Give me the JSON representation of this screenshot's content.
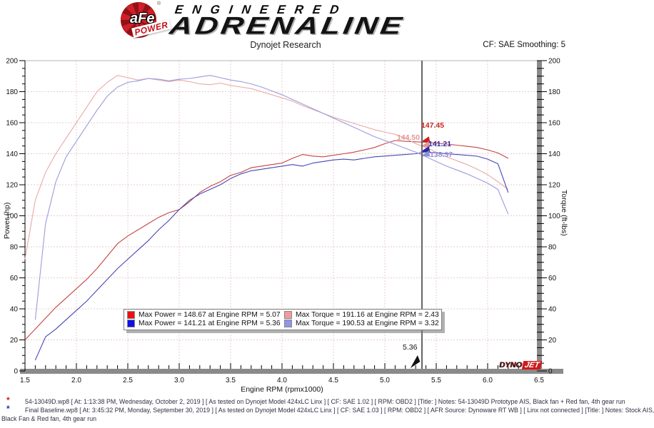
{
  "header": {
    "brand_afe": "aFe",
    "brand_reg": "®",
    "brand_power": "POWER",
    "brand_line1": "ENGINEERED",
    "brand_line2": "ADRENALINE",
    "subtitle": "Dynojet Research",
    "smoothing_label": "CF: SAE Smoothing: 5"
  },
  "watermark": {
    "dyno": "DYNO",
    "jet": "JET"
  },
  "chart_data": {
    "type": "line",
    "title": "",
    "xlabel": "Engine RPM (rpmx1000)",
    "ylabel_left": "Power (hp)",
    "ylabel_right": "Torque (ft-lbs)",
    "xlim": [
      1.5,
      6.5
    ],
    "ylim": [
      0,
      200
    ],
    "x_major_step": 0.5,
    "x_minor_step": 0.1,
    "y_major_step": 20,
    "y_minor_step": 5,
    "grid": true,
    "grid_color": "#e9cdcd",
    "x": [
      1.5,
      1.6,
      1.7,
      1.8,
      1.9,
      2.0,
      2.1,
      2.2,
      2.3,
      2.4,
      2.5,
      2.6,
      2.7,
      2.8,
      2.9,
      3.0,
      3.1,
      3.2,
      3.3,
      3.4,
      3.5,
      3.6,
      3.7,
      3.8,
      3.9,
      4.0,
      4.1,
      4.2,
      4.3,
      4.4,
      4.5,
      4.6,
      4.7,
      4.8,
      4.9,
      5.0,
      5.1,
      5.2,
      5.3,
      5.4,
      5.5,
      5.6,
      5.7,
      5.8,
      5.9,
      6.0,
      6.1,
      6.2
    ],
    "series": [
      {
        "name": "power-run1-prototype",
        "unit": "hp",
        "color": "#c24545",
        "values": [
          20,
          27,
          34,
          41,
          47,
          53,
          59,
          66,
          74,
          82,
          87,
          91,
          95,
          99,
          102,
          104,
          109,
          115,
          119,
          122,
          126,
          128,
          131,
          132,
          133,
          134,
          137,
          139.5,
          138.5,
          138,
          139,
          140,
          141,
          142.5,
          144,
          146.5,
          148.5,
          148,
          147.7,
          147.4,
          146.8,
          146.2,
          145.5,
          144.8,
          144,
          142.5,
          140.5,
          137
        ]
      },
      {
        "name": "torque-run1-prototype",
        "unit": "ft-lbs",
        "color": "#e9a9a9",
        "values": [
          72,
          110,
          128,
          140,
          150,
          160,
          170,
          180,
          186,
          190.5,
          189,
          187.5,
          188.5,
          187.5,
          186.5,
          187.5,
          186.5,
          185,
          184.5,
          185.5,
          184,
          183,
          182,
          180,
          178,
          176,
          174,
          171,
          168.5,
          166,
          163.5,
          161.5,
          159.5,
          157.5,
          155.5,
          154,
          152.5,
          150,
          146.5,
          144,
          141,
          138,
          135.5,
          133,
          130,
          126.5,
          122,
          117
        ]
      },
      {
        "name": "power-run2-baseline",
        "unit": "hp",
        "color": "#4646b6",
        "values": [
          null,
          7,
          22,
          27,
          33,
          39,
          45,
          52,
          59,
          66,
          72,
          78,
          84,
          91,
          97,
          104,
          110,
          114,
          117,
          120,
          124,
          127,
          129,
          130,
          131,
          132,
          133,
          132,
          134,
          135,
          136,
          136.5,
          136,
          137,
          138,
          138.5,
          139,
          139.5,
          140,
          141.2,
          140.6,
          140,
          139.5,
          139,
          138.4,
          136.5,
          133.5,
          115
        ]
      },
      {
        "name": "torque-run2-baseline",
        "unit": "ft-lbs",
        "color": "#9b9bdc",
        "values": [
          null,
          33,
          95,
          122,
          138,
          148,
          158,
          168,
          177,
          183,
          186,
          187,
          188.5,
          188,
          187,
          188,
          188.5,
          189.5,
          190.5,
          189,
          187.5,
          186.5,
          185,
          183,
          180.5,
          178,
          175,
          172,
          169,
          166,
          163,
          160,
          157,
          154,
          151,
          148.5,
          146,
          143.5,
          141,
          138,
          135,
          132,
          129.5,
          127,
          124,
          121,
          117,
          101
        ]
      }
    ],
    "legend": [
      {
        "color": "#ee1010",
        "label": "Max Power = 148.67 at Engine RPM = 5.07"
      },
      {
        "color": "#f49a9a",
        "label": "Max Torque = 191.16 at Engine RPM = 2.43"
      },
      {
        "color": "#1010e6",
        "label": "Max Power = 141.21 at Engine RPM = 5.36"
      },
      {
        "color": "#9494e8",
        "label": "Max Torque = 190.53 at Engine RPM = 3.32"
      }
    ],
    "cursor": {
      "rpm": 5.36,
      "label": "5.36",
      "values": [
        147.45,
        144.5,
        141.21,
        138.37
      ]
    },
    "cursor_annotations": [
      {
        "text": "147.45",
        "color": "#cc2222"
      },
      {
        "text": "144.50",
        "color": "#e59595"
      },
      {
        "text": "141.21",
        "color": "#2a2aa0"
      },
      {
        "text": "138.37",
        "color": "#9090d8"
      }
    ]
  },
  "footer": {
    "runs": [
      {
        "color": "#cc2020",
        "text": "54-13049D.wp8 [ At: 1:13:38 PM, Wednesday, October 2, 2019 ] [ As tested on Dynojet Model 424xLC Linx ] [ CF: SAE 1.02 ] [ RPM: OBD2 ] [Title: ]  Notes: 54-13049D Prototype AIS, Black fan + Red fan, 4th gear run"
      },
      {
        "color": "#2030c0",
        "text": "Final Baseline.wp8 [ At: 3:45:32 PM, Monday, September 30, 2019 ] [ As tested on Dynojet Model 424xLC Linx ] [ CF: SAE 1.03 ] [ RPM: OBD2 ] [ AFR Source: Dynoware RT WB ] [ Linx not connected ] [Title: ]  Notes: Stock AIS,"
      }
    ],
    "overflow": "Black Fan & Red fan, 4th gear run"
  }
}
